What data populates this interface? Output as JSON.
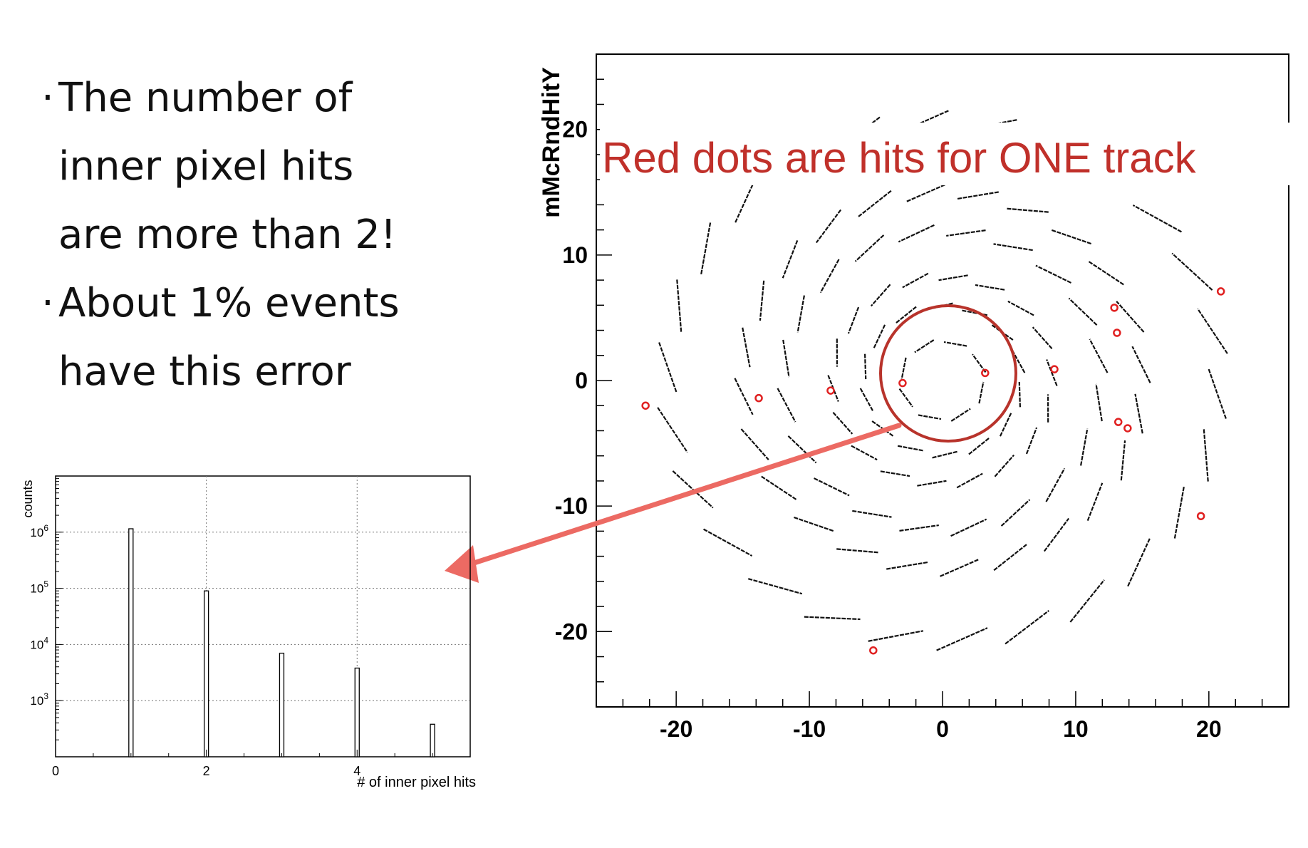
{
  "bullets": {
    "lines": [
      {
        "text": "The number of",
        "bullet": true
      },
      {
        "text": "inner pixel hits",
        "bullet": false
      },
      {
        "text": "are more than 2!",
        "bullet": false
      },
      {
        "text": "About 1% events",
        "bullet": true
      },
      {
        "text": "have this error",
        "bullet": false
      }
    ],
    "bullet_char": "·"
  },
  "annotation": {
    "text": "Red dots are hits for ONE track",
    "color": "#c0302a",
    "arrow_color": "#ec6a63"
  },
  "chart_data": [
    {
      "type": "scatter",
      "title": "",
      "xlabel": "",
      "ylabel": "mMcRndHitY",
      "xlim": [
        -26,
        26
      ],
      "ylim": [
        -26,
        26
      ],
      "x_ticks": [
        -20,
        -10,
        0,
        10,
        20
      ],
      "y_ticks": [
        -20,
        -10,
        0,
        10,
        20
      ],
      "series": [
        {
          "color": "#e02020",
          "points": [
            [
              -22.3,
              -2.0
            ],
            [
              -13.8,
              -1.4
            ],
            [
              -8.4,
              -0.8
            ],
            [
              -3.0,
              -0.2
            ],
            [
              3.2,
              0.6
            ],
            [
              8.4,
              0.9
            ],
            [
              12.9,
              5.8
            ],
            [
              13.1,
              3.8
            ],
            [
              20.9,
              7.1
            ],
            [
              13.2,
              -3.3
            ],
            [
              13.9,
              -3.8
            ],
            [
              19.4,
              -10.8
            ],
            [
              -5.2,
              -21.5
            ]
          ]
        }
      ],
      "background_segments": "ladder-layer hit segments arranged in spiral rings at radii ~3, 6, 8, 12, 15, 21"
    },
    {
      "type": "bar",
      "title": "",
      "xlabel": "# of inner pixel hits",
      "ylabel": "counts",
      "log_y": true,
      "xlim": [
        0,
        5.5
      ],
      "ylim": [
        100,
        10000000
      ],
      "x_ticks": [
        0,
        2,
        4
      ],
      "y_ticks": [
        "10^3",
        "10^4",
        "10^5",
        "10^6"
      ],
      "grid": true,
      "categories": [
        1,
        2,
        3,
        4,
        5
      ],
      "values": [
        1150000,
        90000,
        7000,
        3800,
        380
      ]
    }
  ]
}
